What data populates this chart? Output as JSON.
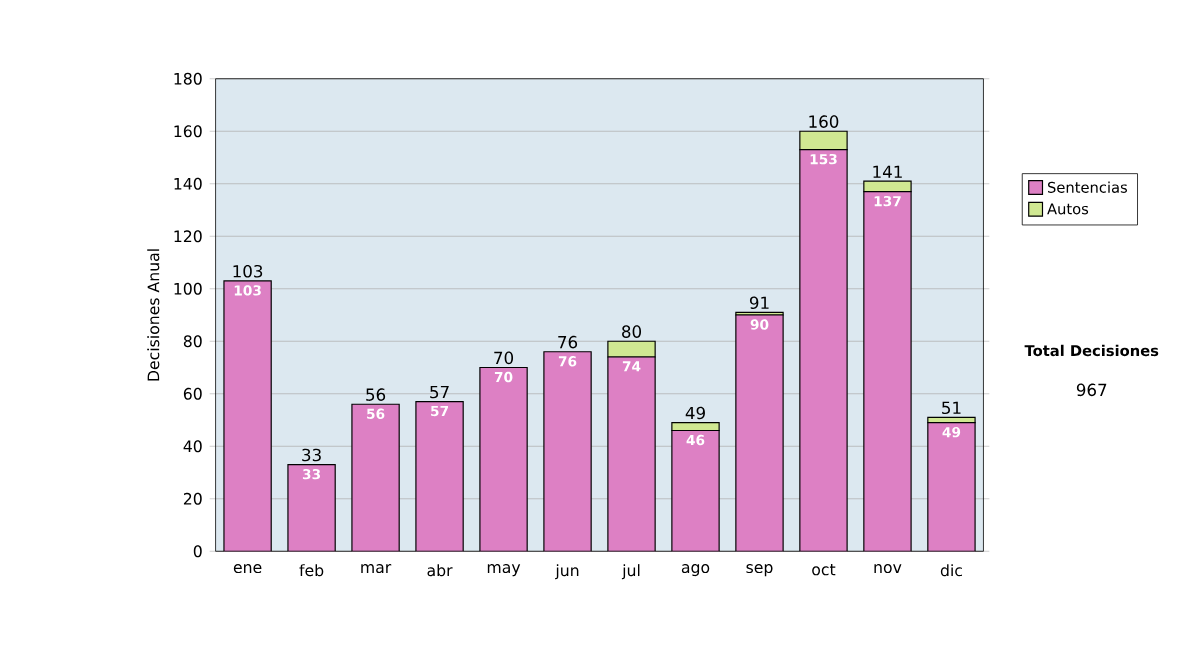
{
  "chart_data": {
    "type": "bar",
    "stacked": true,
    "ylabel": "Decisiones Anual",
    "categories": [
      "ene",
      "feb",
      "mar",
      "abr",
      "may",
      "jun",
      "jul",
      "ago",
      "sep",
      "oct",
      "nov",
      "dic"
    ],
    "series": [
      {
        "name": "Sentencias",
        "color": "#dd80c4",
        "values": [
          103,
          33,
          56,
          57,
          70,
          76,
          74,
          46,
          90,
          153,
          137,
          49
        ],
        "value_labels": [
          "103",
          "33",
          "56",
          "57",
          "70",
          "76",
          "74",
          "46",
          "90",
          "153",
          "137",
          "49"
        ]
      },
      {
        "name": "Autos",
        "color": "#d0e892",
        "values": [
          0,
          0,
          0,
          0,
          0,
          0,
          6,
          3,
          1,
          7,
          4,
          2
        ]
      }
    ],
    "totals": [
      "103",
      "33",
      "56",
      "57",
      "70",
      "76",
      "80",
      "49",
      "91",
      "160",
      "141",
      "51"
    ],
    "ylim": [
      0,
      180
    ],
    "yticks": [
      0,
      20,
      40,
      60,
      80,
      100,
      120,
      140,
      160,
      180
    ],
    "grid": "y",
    "legend": "right",
    "annotations": [
      "Total Decisiones",
      "967"
    ]
  }
}
